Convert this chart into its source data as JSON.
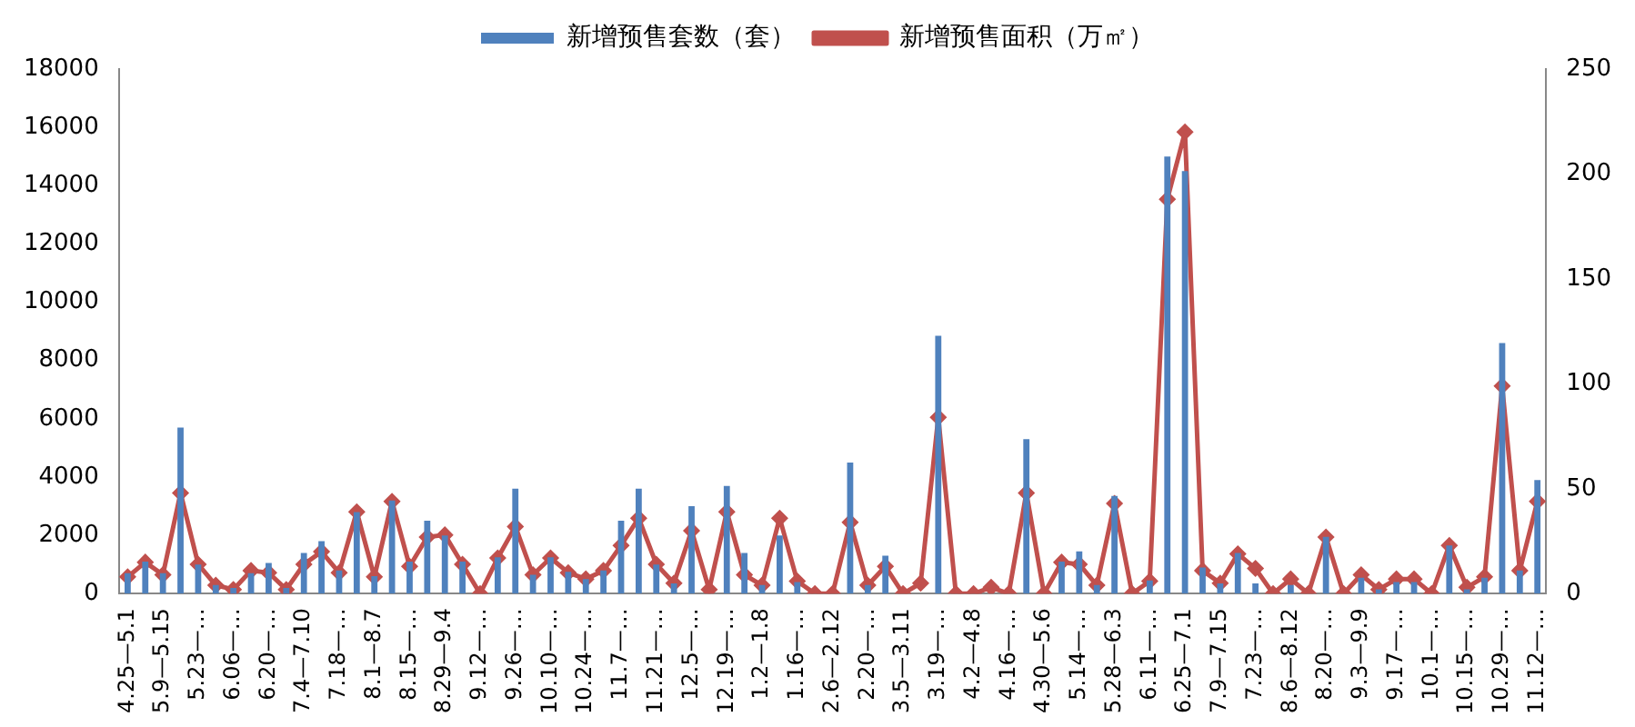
{
  "chart_data": {
    "type": "bar",
    "categories": [
      "4.25—5.1",
      null,
      "5.9—5.15",
      null,
      "5.23—…",
      null,
      "6.06—…",
      null,
      "6.20—…",
      null,
      "7.4—7.10",
      null,
      "7.18—…",
      null,
      "8.1—8.7",
      null,
      "8.15—…",
      null,
      "8.29—9.4",
      null,
      "9.12—…",
      null,
      "9.26—…",
      null,
      "10.10—…",
      null,
      "10.24—…",
      null,
      "11.7—…",
      null,
      "11.21—…",
      null,
      "12.5—…",
      null,
      "12.19—…",
      null,
      "1.2—1.8",
      null,
      "1.16—…",
      null,
      "2.6—2.12",
      null,
      "2.20—…",
      null,
      "3.5—3.11",
      null,
      "3.19—…",
      null,
      "4.2—4.8",
      null,
      "4.16—…",
      null,
      "4.30—5.6",
      null,
      "5.14—…",
      null,
      "5.28—6.3",
      null,
      "6.11—…",
      null,
      "6.25—7.1",
      null,
      "7.9—7.15",
      null,
      "7.23—…",
      null,
      "8.6—8.12",
      null,
      "8.20—…",
      null,
      "9.3—9.9",
      null,
      "9.17—…",
      null,
      "10.1—…",
      null,
      "10.15—…",
      null,
      "10.29—…",
      null,
      "11.12—…"
    ],
    "series": [
      {
        "name": "新增预售套数（套）",
        "color": "#4f81bd",
        "values": [
          700,
          1100,
          700,
          5700,
          1000,
          300,
          200,
          700,
          1050,
          200,
          1400,
          1800,
          800,
          2800,
          600,
          3200,
          1100,
          2500,
          2000,
          1100,
          0,
          1250,
          3600,
          650,
          1250,
          750,
          500,
          800,
          2500,
          3600,
          1000,
          350,
          3000,
          null,
          3700,
          1400,
          300,
          2000,
          400,
          0,
          0,
          4500,
          300,
          1300,
          0,
          null,
          8850,
          0,
          0,
          null,
          0,
          5300,
          0,
          1100,
          1450,
          300,
          3350,
          0,
          450,
          15000,
          14500,
          900,
          350,
          1400,
          350,
          0,
          300,
          0,
          1950,
          0,
          550,
          150,
          400,
          400,
          0,
          1650,
          150,
          550,
          8600,
          800,
          3900
        ]
      },
      {
        "name": "新增预售面积（万㎡）",
        "type": "line",
        "axis": "y2",
        "color": "#c0504d",
        "values": [
          8,
          15,
          9,
          48,
          14,
          4,
          2,
          11,
          10,
          2,
          14,
          20,
          10,
          39,
          8,
          44,
          13,
          27,
          28,
          14,
          0,
          17,
          32,
          9,
          17,
          10,
          7,
          11,
          23,
          36,
          14,
          5,
          30,
          2,
          39,
          9,
          4,
          36,
          6,
          0,
          0,
          34,
          4,
          13,
          0,
          5,
          84,
          0,
          0,
          3,
          0,
          48,
          0,
          15,
          14,
          4,
          43,
          0,
          6,
          188,
          220,
          11,
          5,
          19,
          12,
          0,
          7,
          0,
          27,
          0,
          9,
          2,
          7,
          7,
          0,
          23,
          3,
          8,
          99,
          11,
          44
        ]
      }
    ],
    "ylim": [
      0,
      18000
    ],
    "yticks": [
      0,
      2000,
      4000,
      6000,
      8000,
      10000,
      12000,
      14000,
      16000,
      18000
    ],
    "y2lim": [
      0,
      250
    ],
    "y2ticks": [
      0,
      50,
      100,
      150,
      200,
      250
    ],
    "grid": false,
    "legend": "top",
    "marker": "diamond",
    "line_style": "solid"
  }
}
